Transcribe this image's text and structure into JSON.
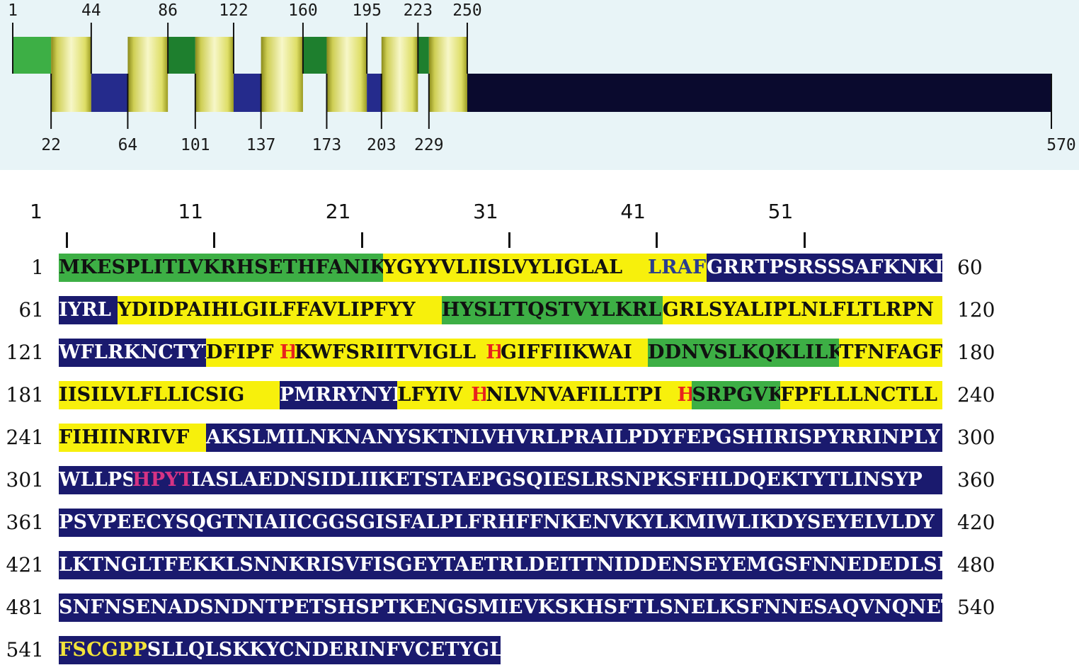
{
  "domain_map": {
    "colors": {
      "green": "#3daf45",
      "dark_green": "#1e7f2e",
      "yellow": "#f2ee8a",
      "blue": "#252b8c",
      "navy": "#0a0a2e",
      "panel": "#e8f4f7"
    },
    "top_labels": [
      "1",
      "44",
      "86",
      "122",
      "160",
      "195",
      "223",
      "250"
    ],
    "bottom_labels": [
      "22",
      "64",
      "101",
      "137",
      "173",
      "203",
      "229",
      "570"
    ],
    "segments": [
      {
        "start": 1,
        "end": 22,
        "type": "green"
      },
      {
        "start": 22,
        "end": 44,
        "type": "helix"
      },
      {
        "start": 44,
        "end": 64,
        "type": "blue"
      },
      {
        "start": 64,
        "end": 86,
        "type": "helix"
      },
      {
        "start": 86,
        "end": 101,
        "type": "dark_green"
      },
      {
        "start": 101,
        "end": 122,
        "type": "helix"
      },
      {
        "start": 122,
        "end": 137,
        "type": "blue"
      },
      {
        "start": 137,
        "end": 160,
        "type": "helix"
      },
      {
        "start": 160,
        "end": 173,
        "type": "dark_green"
      },
      {
        "start": 173,
        "end": 195,
        "type": "helix"
      },
      {
        "start": 195,
        "end": 203,
        "type": "blue"
      },
      {
        "start": 203,
        "end": 223,
        "type": "helix"
      },
      {
        "start": 223,
        "end": 229,
        "type": "dark_green"
      },
      {
        "start": 229,
        "end": 250,
        "type": "helix"
      },
      {
        "start": 250,
        "end": 570,
        "type": "navy"
      }
    ]
  },
  "ruler": {
    "labels": [
      "1",
      "11",
      "21",
      "31",
      "41",
      "51"
    ]
  },
  "sequence": {
    "colors": {
      "green": "#3daf45",
      "yellow": "#f7f00c",
      "blue": "#1a1a6e",
      "red": "#e8231e",
      "magenta": "#d63384",
      "gold": "#f2e33a",
      "blue_text": "#2a3d8f"
    },
    "rows": [
      {
        "start": "1",
        "end": "60",
        "segments": [
          {
            "text": "MKESPLITLVKRHSETHFANIK",
            "bg": "green"
          },
          {
            "text": "YGYYVLIISLVYLIGLAL",
            "bg": "yellow"
          },
          {
            "text": "LRAF",
            "bg": "yellow",
            "color": "blue_text"
          },
          {
            "text": "GRRTPSRSSSAFKNKI",
            "bg": "blue"
          }
        ]
      },
      {
        "start": "61",
        "end": "120",
        "segments": [
          {
            "text": "IYRL",
            "bg": "blue"
          },
          {
            "text": "YDIDPAIHLGILFFAVLIPFYY",
            "bg": "yellow"
          },
          {
            "text": "HYSLTTQSTVYLKRL",
            "bg": "green"
          },
          {
            "text": "GRLSYALIPLNLFLTLRPN",
            "bg": "yellow"
          }
        ]
      },
      {
        "start": "121",
        "end": "180",
        "segments": [
          {
            "text": "WFLRKNCTYT",
            "bg": "blue"
          },
          {
            "text": "DFIPF",
            "bg": "yellow"
          },
          {
            "text": "H",
            "bg": "yellow",
            "color": "red"
          },
          {
            "text": "KWFSRIITVIGLL",
            "bg": "yellow"
          },
          {
            "text": "H",
            "bg": "yellow",
            "color": "red"
          },
          {
            "text": "GIFFIIKWAI",
            "bg": "yellow"
          },
          {
            "text": "DDNVSLKQKLILK",
            "bg": "green"
          },
          {
            "text": "TFNFAGF",
            "bg": "yellow"
          }
        ]
      },
      {
        "start": "181",
        "end": "240",
        "segments": [
          {
            "text": "IISILVLFLLICSIG",
            "bg": "yellow"
          },
          {
            "text": "PMRRYNYR",
            "bg": "blue"
          },
          {
            "text": "LFYIV",
            "bg": "yellow"
          },
          {
            "text": "H",
            "bg": "yellow",
            "color": "red"
          },
          {
            "text": "NLVNVAFILLTPI",
            "bg": "yellow"
          },
          {
            "text": "H",
            "bg": "yellow",
            "color": "red"
          },
          {
            "text": "SRPGVK",
            "bg": "green"
          },
          {
            "text": "FPFLLLNCTLL",
            "bg": "yellow"
          }
        ]
      },
      {
        "start": "241",
        "end": "300",
        "segments": [
          {
            "text": "FIHIINRIVF",
            "bg": "yellow"
          },
          {
            "text": "AKSLMILNKNANYSKTNLVHVRLPRAILPDYFEPGSHIRISPYRRINPLY",
            "bg": "blue"
          }
        ]
      },
      {
        "start": "301",
        "end": "360",
        "segments": [
          {
            "text": "WLLPS",
            "bg": "blue"
          },
          {
            "text": "HPYT",
            "bg": "blue",
            "color": "magenta"
          },
          {
            "text": "IASLAEDNSIDLIIKETSTAEPGSQIESLRSNPKSFHLDQEKTYTLINSYP",
            "bg": "blue"
          }
        ]
      },
      {
        "start": "361",
        "end": "420",
        "segments": [
          {
            "text": "PSVPEECYSQGTNIAIICGGSGISFALPLFRHFFNKENVKYLKMIWLIKDYSEYELVLDY",
            "bg": "blue"
          }
        ]
      },
      {
        "start": "421",
        "end": "480",
        "segments": [
          {
            "text": "LKTNGLTFEKKLSNNKRISVFISGEYTAETRLDEITTNIDDENSEYEMGSFNNEDEDLSI",
            "bg": "blue"
          }
        ]
      },
      {
        "start": "481",
        "end": "540",
        "segments": [
          {
            "text": "SNFNSENADSNDNTPETSHSPTKENGSMIEVKSKHSFTLSNELKSFNNESAQVNQNETWL",
            "bg": "blue"
          }
        ]
      },
      {
        "start": "541",
        "end": "",
        "segments": [
          {
            "text": "FSCGPP",
            "bg": "blue",
            "color": "gold"
          },
          {
            "text": "SLLQLSKKYCNDERINFVCETYGL",
            "bg": "blue"
          }
        ]
      }
    ]
  }
}
